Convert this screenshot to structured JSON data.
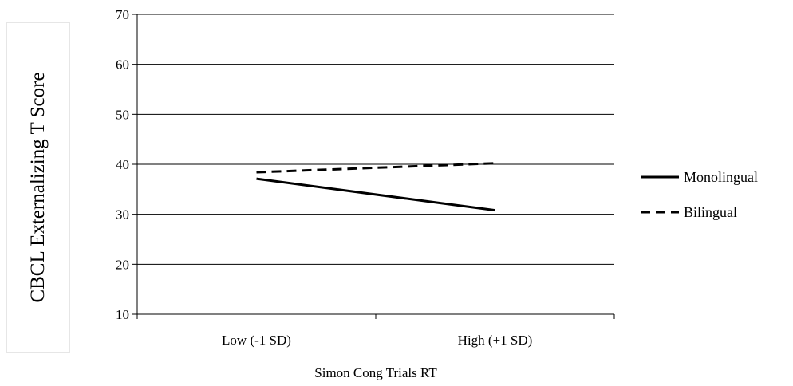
{
  "chart_data": {
    "type": "line",
    "title": "",
    "xlabel": "Simon Cong Trials RT",
    "ylabel": "CBCL Externalizing T Score",
    "categories": [
      "Low (-1 SD)",
      "High (+1 SD)"
    ],
    "ylim": [
      10,
      70
    ],
    "yticks": [
      10,
      20,
      30,
      40,
      50,
      60,
      70
    ],
    "grid": true,
    "legend": "right",
    "series": [
      {
        "name": "Monolingual",
        "values": [
          37.1,
          30.8
        ],
        "style": "solid",
        "color": "#000000"
      },
      {
        "name": "Bilingual",
        "values": [
          38.4,
          40.2
        ],
        "style": "dashed",
        "color": "#000000"
      }
    ]
  }
}
